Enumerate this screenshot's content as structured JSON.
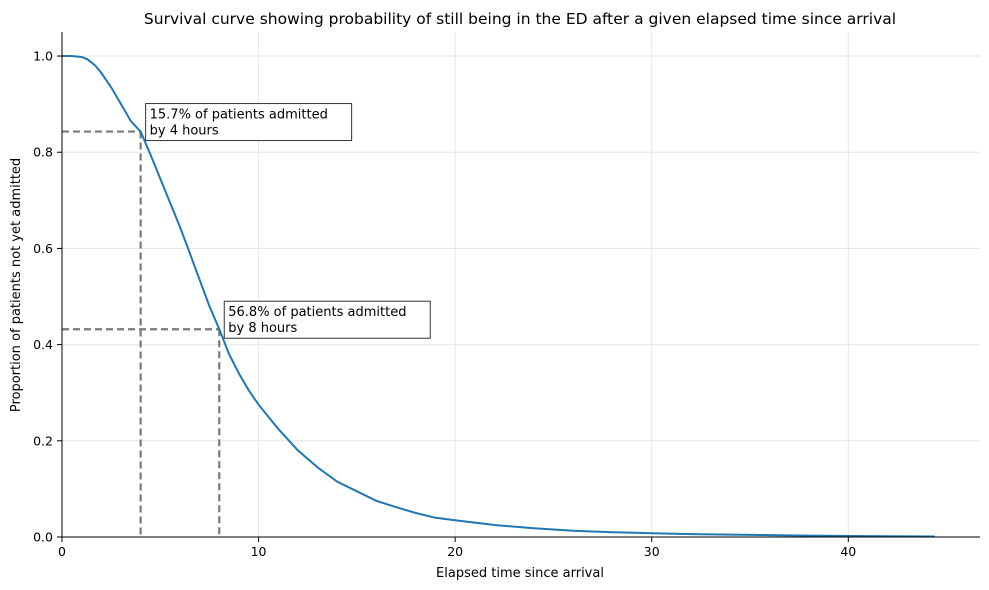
{
  "chart_data": {
    "type": "line",
    "title": "Survival curve showing probability of still being in the ED after a given elapsed time since arrival",
    "xlabel": "Elapsed time since arrival",
    "ylabel": "Proportion of patients not yet admitted",
    "xlim": [
      0,
      46.7
    ],
    "ylim": [
      0,
      1.05
    ],
    "x_ticks": [
      "0",
      "10",
      "20",
      "30",
      "40"
    ],
    "y_ticks": [
      "0.0",
      "0.2",
      "0.4",
      "0.6",
      "0.8",
      "1.0"
    ],
    "grid": true,
    "colors": {
      "curve": "#1f77b4",
      "reference": "#7a7a7a",
      "grid": "#e6e6e6"
    },
    "series": [
      {
        "x": [
          0,
          0.5,
          1.0,
          1.3,
          1.7,
          2.0,
          2.5,
          3.0,
          3.5,
          4.0,
          4.5,
          5.0,
          5.5,
          6.0,
          6.5,
          7.0,
          7.5,
          8.0,
          8.5,
          9.0,
          9.5,
          10.0,
          11.0,
          12.0,
          13.0,
          14.0,
          15.0,
          16.0,
          17.0,
          18.0,
          19.0,
          20.0,
          21.0,
          22.0,
          24.0,
          26.0,
          28.0,
          30.0,
          32.0,
          34.0,
          36.0,
          38.0,
          40.0,
          42.0,
          44.4
        ],
        "values": [
          1.0,
          1.0,
          0.998,
          0.993,
          0.98,
          0.965,
          0.935,
          0.9,
          0.865,
          0.843,
          0.795,
          0.745,
          0.695,
          0.645,
          0.59,
          0.535,
          0.48,
          0.432,
          0.38,
          0.34,
          0.305,
          0.275,
          0.225,
          0.18,
          0.145,
          0.115,
          0.095,
          0.075,
          0.062,
          0.05,
          0.04,
          0.035,
          0.03,
          0.025,
          0.018,
          0.013,
          0.01,
          0.008,
          0.006,
          0.005,
          0.004,
          0.003,
          0.002,
          0.0015,
          0.001
        ]
      }
    ],
    "reference_lines": [
      {
        "x": 4,
        "y": 0.843
      },
      {
        "x": 8,
        "y": 0.432
      }
    ],
    "annotations": [
      {
        "line1": "15.7% of patients admitted",
        "line2": "by 4 hours",
        "x": 4,
        "y": 0.843
      },
      {
        "line1": "56.8% of patients admitted",
        "line2": "by 8 hours",
        "x": 8,
        "y": 0.432
      }
    ]
  }
}
